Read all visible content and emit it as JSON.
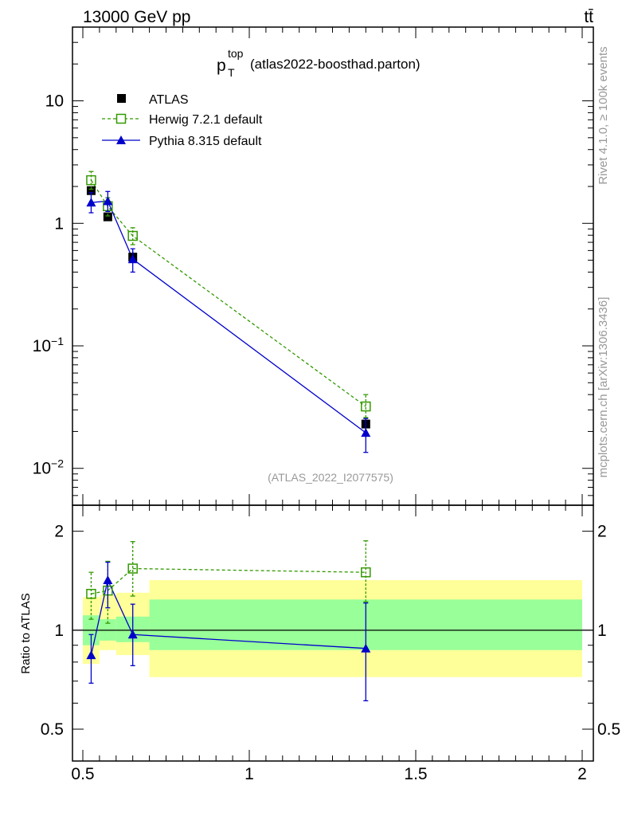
{
  "header": {
    "energy_label": "13000 GeV pp",
    "process_label": "tt̄"
  },
  "side_labels": {
    "rivet": "Rivet 4.1.0, ≥ 100k events",
    "mcplots": "mcplots.cern.ch [arXiv:1306.3436]"
  },
  "colors": {
    "atlas": "#000000",
    "herwig": "#339900",
    "pythia": "#0000cc",
    "band_outer": "#ffff99",
    "band_inner": "#99ff99",
    "watermark": "#999999"
  },
  "chart_data": [
    {
      "type": "scatter",
      "panel": "main",
      "title_main": "p",
      "title_sup": "top",
      "title_sub": "T",
      "title_rest": "(atlas2022-boosthad.parton)",
      "watermark": "(ATLAS_2022_I2077575)",
      "yscale": "log",
      "ylim": [
        0.005,
        40
      ],
      "xlim": [
        0.45,
        2.05
      ],
      "y_ticks": [
        {
          "value": 10,
          "label": "10"
        },
        {
          "value": 1,
          "label": "1"
        },
        {
          "value": 0.1,
          "label": "10",
          "sup": "−1"
        },
        {
          "value": 0.01,
          "label": "10",
          "sup": "−2"
        }
      ],
      "legend_position": "top-left",
      "series": [
        {
          "name": "ATLAS",
          "marker": "filled-square",
          "line": "none",
          "points": [
            {
              "x": 0.525,
              "xlo": 0.5,
              "xhi": 0.55,
              "y": 1.85,
              "ylo": 1.7,
              "yhi": 2.0
            },
            {
              "x": 0.575,
              "xlo": 0.55,
              "xhi": 0.6,
              "y": 1.13,
              "ylo": 1.05,
              "yhi": 1.22
            },
            {
              "x": 0.65,
              "xlo": 0.6,
              "xhi": 0.7,
              "y": 0.53,
              "ylo": 0.48,
              "yhi": 0.59
            },
            {
              "x": 1.35,
              "xlo": 0.7,
              "xhi": 2.0,
              "y": 0.023,
              "ylo": 0.021,
              "yhi": 0.025
            }
          ]
        },
        {
          "name": "Herwig 7.2.1 default",
          "marker": "open-square",
          "line": "dashed",
          "points": [
            {
              "x": 0.525,
              "y": 2.25,
              "ylo": 1.9,
              "yhi": 2.65
            },
            {
              "x": 0.575,
              "y": 1.38,
              "ylo": 1.15,
              "yhi": 1.62
            },
            {
              "x": 0.65,
              "y": 0.79,
              "ylo": 0.67,
              "yhi": 0.92
            },
            {
              "x": 1.35,
              "y": 0.032,
              "ylo": 0.026,
              "yhi": 0.04
            }
          ]
        },
        {
          "name": "Pythia 8.315 default",
          "marker": "filled-triangle",
          "line": "solid",
          "points": [
            {
              "x": 0.525,
              "y": 1.48,
              "ylo": 1.22,
              "yhi": 1.78
            },
            {
              "x": 0.575,
              "y": 1.52,
              "ylo": 1.25,
              "yhi": 1.82
            },
            {
              "x": 0.65,
              "y": 0.51,
              "ylo": 0.4,
              "yhi": 0.62
            },
            {
              "x": 1.35,
              "y": 0.0195,
              "ylo": 0.0135,
              "yhi": 0.0255
            }
          ]
        }
      ]
    },
    {
      "type": "scatter",
      "panel": "ratio",
      "ylabel": "Ratio to ATLAS",
      "yscale": "log",
      "ylim": [
        0.4,
        2.4
      ],
      "xlim": [
        0.45,
        2.05
      ],
      "y_ticks": [
        {
          "value": 2,
          "label": "2"
        },
        {
          "value": 1,
          "label": "1"
        },
        {
          "value": 0.5,
          "label": "0.5"
        }
      ],
      "x_ticks": [
        {
          "value": 0.5,
          "label": "0.5"
        },
        {
          "value": 1,
          "label": "1"
        },
        {
          "value": 1.5,
          "label": "1.5"
        },
        {
          "value": 2,
          "label": "2"
        }
      ],
      "uncertainty_bands": [
        {
          "xlo": 0.5,
          "xhi": 0.55,
          "outer": [
            0.79,
            1.26
          ],
          "inner": [
            0.9,
            1.11
          ]
        },
        {
          "xlo": 0.55,
          "xhi": 0.6,
          "outer": [
            0.87,
            1.28
          ],
          "inner": [
            0.93,
            1.08
          ]
        },
        {
          "xlo": 0.6,
          "xhi": 0.7,
          "outer": [
            0.84,
            1.3
          ],
          "inner": [
            0.92,
            1.1
          ]
        },
        {
          "xlo": 0.7,
          "xhi": 2.0,
          "outer": [
            0.72,
            1.42
          ],
          "inner": [
            0.87,
            1.24
          ]
        }
      ],
      "series": [
        {
          "name": "Herwig 7.2.1 default",
          "line": "dashed",
          "points": [
            {
              "x": 0.525,
              "y": 1.29,
              "ylo": 1.08,
              "yhi": 1.5
            },
            {
              "x": 0.575,
              "y": 1.32,
              "ylo": 1.05,
              "yhi": 1.62
            },
            {
              "x": 0.65,
              "y": 1.54,
              "ylo": 1.27,
              "yhi": 1.86
            },
            {
              "x": 1.35,
              "y": 1.5,
              "ylo": 1.22,
              "yhi": 1.87
            }
          ]
        },
        {
          "name": "Pythia 8.315 default",
          "line": "solid",
          "points": [
            {
              "x": 0.525,
              "y": 0.84,
              "ylo": 0.69,
              "yhi": 0.97
            },
            {
              "x": 0.575,
              "y": 1.42,
              "ylo": 1.17,
              "yhi": 1.61
            },
            {
              "x": 0.65,
              "y": 0.97,
              "ylo": 0.78,
              "yhi": 1.2
            },
            {
              "x": 1.35,
              "y": 0.88,
              "ylo": 0.61,
              "yhi": 1.21
            }
          ]
        }
      ]
    }
  ]
}
